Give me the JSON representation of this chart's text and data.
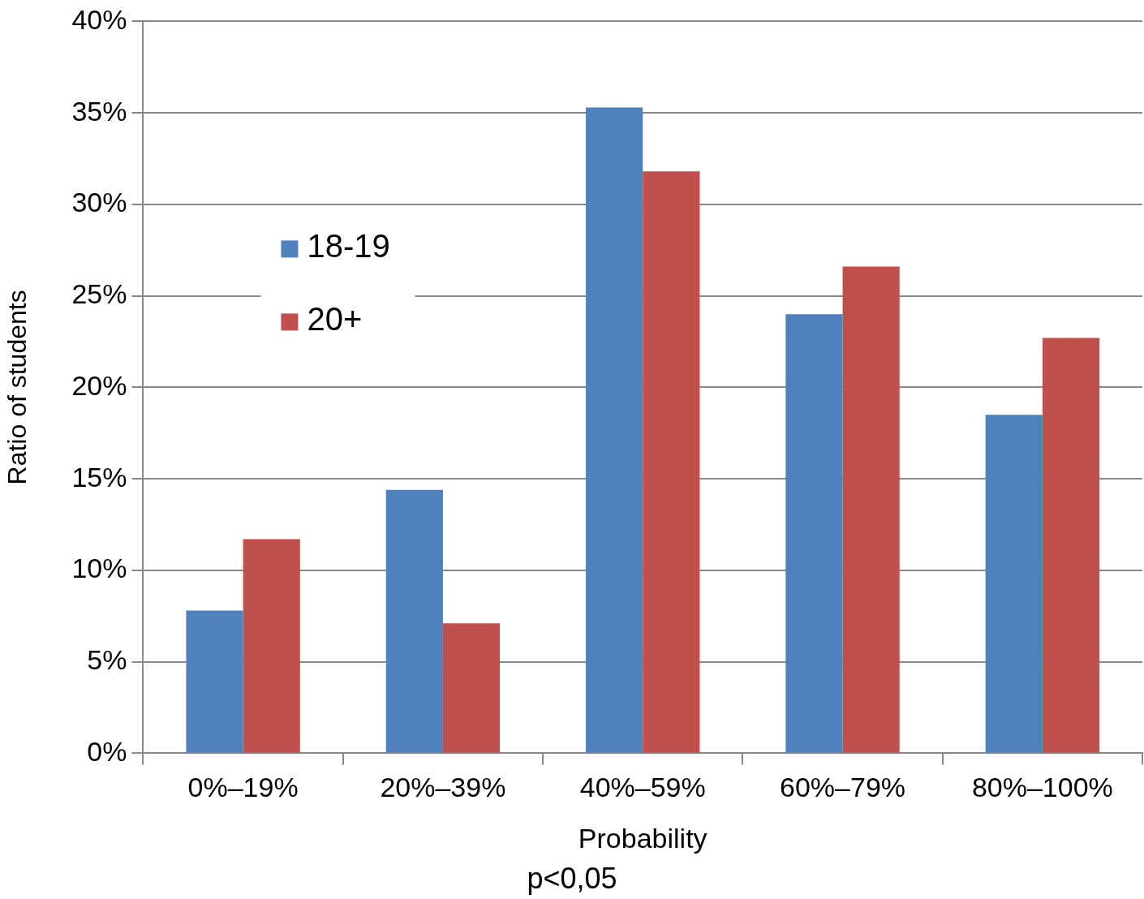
{
  "chart_data": {
    "type": "bar",
    "xlabel": "Probability",
    "ylabel": "Ratio of students",
    "categories": [
      "0%–19%",
      "20%–39%",
      "40%–59%",
      "60%–79%",
      "80%–100%"
    ],
    "series": [
      {
        "name": "18-19",
        "color": "#4f81bd",
        "values": [
          7.8,
          14.4,
          35.3,
          24.0,
          18.5
        ]
      },
      {
        "name": "20+",
        "color": "#c0504d",
        "values": [
          11.7,
          7.1,
          31.8,
          26.6,
          22.7
        ]
      }
    ],
    "ylim": [
      0,
      40
    ],
    "yticks": [
      {
        "value": 0,
        "label": "0%"
      },
      {
        "value": 5,
        "label": "5%"
      },
      {
        "value": 10,
        "label": "10%"
      },
      {
        "value": 15,
        "label": "15%"
      },
      {
        "value": 20,
        "label": "20%"
      },
      {
        "value": 25,
        "label": "25%"
      },
      {
        "value": 30,
        "label": "30%"
      },
      {
        "value": 35,
        "label": "35%"
      },
      {
        "value": 40,
        "label": "40%"
      }
    ],
    "grid": "y",
    "legend": "top left",
    "annotations": [
      "p<0,05"
    ]
  }
}
